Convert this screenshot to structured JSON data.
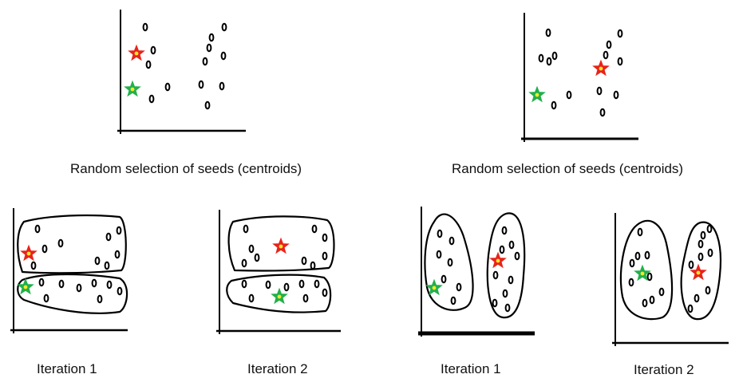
{
  "captions": {
    "top_left": "Random selection of seeds (centroids)",
    "top_right": "Random selection of seeds (centroids)",
    "bottom_1": "Iteration 1",
    "bottom_2": "Iteration 2",
    "bottom_3": "Iteration 1",
    "bottom_4": "Iteration 2"
  },
  "colors": {
    "red_seed": "#e8231a",
    "green_seed": "#22b04b",
    "star_center": "#f2e82a",
    "ink": "#000000"
  }
}
